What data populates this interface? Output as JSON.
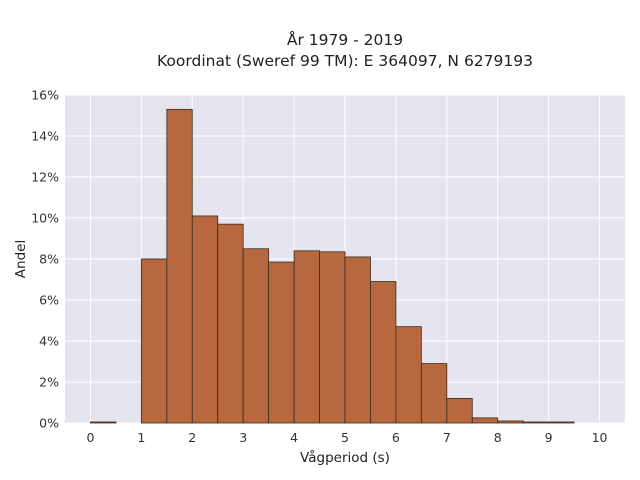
{
  "chart_data": {
    "type": "bar",
    "title": "År 1979 - 2019",
    "subtitle": "Koordinat (Sweref 99 TM): E 364097, N 6279193",
    "xlabel": "Vågperiod (s)",
    "ylabel": "Andel",
    "xlim": [
      -0.5,
      10.5
    ],
    "ylim": [
      0,
      16
    ],
    "xticks": [
      0,
      1,
      2,
      3,
      4,
      5,
      6,
      7,
      8,
      9,
      10
    ],
    "yticks": [
      0,
      2,
      4,
      6,
      8,
      10,
      12,
      14,
      16
    ],
    "ytick_suffix": "%",
    "grid": true,
    "bin_width": 0.5,
    "bins": [
      {
        "x0": 0.0,
        "x1": 0.5,
        "value": 0.05
      },
      {
        "x0": 0.5,
        "x1": 1.0,
        "value": 0.0
      },
      {
        "x0": 1.0,
        "x1": 1.5,
        "value": 8.0
      },
      {
        "x0": 1.5,
        "x1": 2.0,
        "value": 15.3
      },
      {
        "x0": 2.0,
        "x1": 2.5,
        "value": 10.1
      },
      {
        "x0": 2.5,
        "x1": 3.0,
        "value": 9.7
      },
      {
        "x0": 3.0,
        "x1": 3.5,
        "value": 8.5
      },
      {
        "x0": 3.5,
        "x1": 4.0,
        "value": 7.85
      },
      {
        "x0": 4.0,
        "x1": 4.5,
        "value": 8.4
      },
      {
        "x0": 4.5,
        "x1": 5.0,
        "value": 8.35
      },
      {
        "x0": 5.0,
        "x1": 5.5,
        "value": 8.1
      },
      {
        "x0": 5.5,
        "x1": 6.0,
        "value": 6.9
      },
      {
        "x0": 6.0,
        "x1": 6.5,
        "value": 4.7
      },
      {
        "x0": 6.5,
        "x1": 7.0,
        "value": 2.9
      },
      {
        "x0": 7.0,
        "x1": 7.5,
        "value": 1.2
      },
      {
        "x0": 7.5,
        "x1": 8.0,
        "value": 0.25
      },
      {
        "x0": 8.0,
        "x1": 8.5,
        "value": 0.1
      },
      {
        "x0": 8.5,
        "x1": 9.0,
        "value": 0.05
      },
      {
        "x0": 9.0,
        "x1": 9.5,
        "value": 0.05
      },
      {
        "x0": 9.5,
        "x1": 10.0,
        "value": 0.0
      }
    ],
    "colors": {
      "bar_fill": "#b8683f",
      "bar_stroke": "#3a2a20",
      "plot_background": "#e5e5f0",
      "grid": "#ffffff"
    }
  }
}
